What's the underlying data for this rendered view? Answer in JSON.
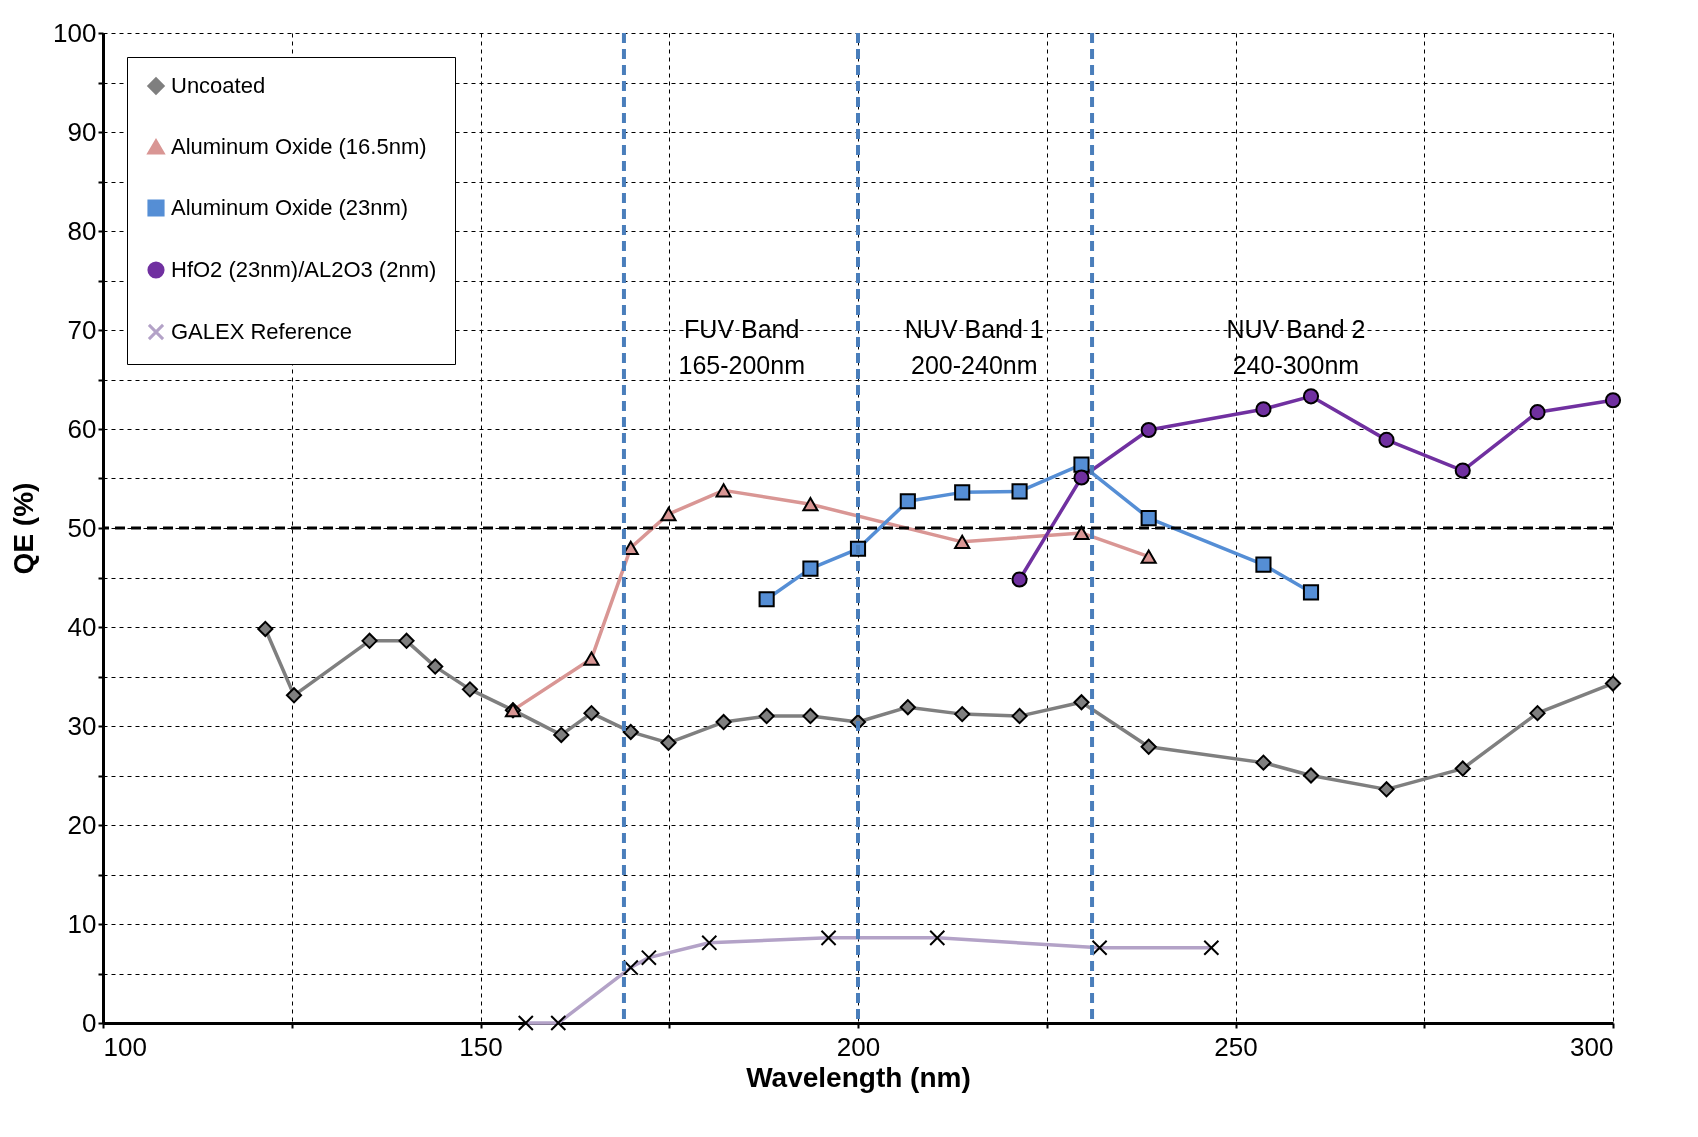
{
  "chart_data": {
    "type": "line",
    "xlabel": "Wavelength (nm)",
    "ylabel": "QE (%)",
    "xlim": [
      100,
      300
    ],
    "xticks": [
      100,
      {
        "value": 125,
        "label": null
      },
      150,
      {
        "value": 175,
        "label": null
      },
      200,
      {
        "value": 225,
        "label": null
      },
      250,
      {
        "value": 275,
        "label": null
      },
      300
    ],
    "ylim": [
      0,
      100
    ],
    "yticks": [
      0,
      {
        "value": 5,
        "label": null
      },
      10,
      {
        "value": 15,
        "label": null
      },
      20,
      {
        "value": 25,
        "label": null
      },
      30,
      {
        "value": 35,
        "label": null
      },
      40,
      {
        "value": 45,
        "label": null
      },
      50,
      {
        "value": 55,
        "label": null
      },
      60,
      {
        "value": 65,
        "label": null
      },
      70,
      {
        "value": 75,
        "label": null
      },
      80,
      {
        "value": 85,
        "label": null
      },
      90,
      {
        "value": 95,
        "label": null
      },
      100
    ],
    "grid": true,
    "legend": "top left",
    "line_style": "solid",
    "series": [
      {
        "name": "Uncoated",
        "color": "#7f7f7f",
        "marker": "diamond",
        "x": [
          121.5,
          125.3,
          135.3,
          140.2,
          144.0,
          148.6,
          154.3,
          160.7,
          164.7,
          169.9,
          174.9,
          182.2,
          187.9,
          193.7,
          200.0,
          206.6,
          213.8,
          221.4,
          229.6,
          238.5,
          253.7,
          260.0,
          270.0,
          280.1,
          290.0,
          300.0
        ],
        "values": [
          39.8,
          33.1,
          38.6,
          38.6,
          36.0,
          33.7,
          31.6,
          29.1,
          31.3,
          29.4,
          28.3,
          30.4,
          31.0,
          31.0,
          30.4,
          31.9,
          31.2,
          31.0,
          32.4,
          27.9,
          26.3,
          25.0,
          23.6,
          25.7,
          31.3,
          34.3
        ]
      },
      {
        "name": "Aluminum Oxide (16.5nm)",
        "color": "#d99694",
        "marker": "triangle",
        "x": [
          154.3,
          164.7,
          169.9,
          174.9,
          182.2,
          193.7,
          213.8,
          229.6,
          238.5
        ],
        "values": [
          31.6,
          36.8,
          48.0,
          51.4,
          53.8,
          52.4,
          48.6,
          49.5,
          47.1
        ]
      },
      {
        "name": "Aluminum Oxide (23nm)",
        "color": "#558ed5",
        "marker": "square",
        "x": [
          187.9,
          193.7,
          200.0,
          206.6,
          213.8,
          221.4,
          229.6,
          238.5,
          253.7,
          260.0
        ],
        "values": [
          42.8,
          45.9,
          47.9,
          52.7,
          53.6,
          53.7,
          56.4,
          51.0,
          46.3,
          43.5
        ]
      },
      {
        "name": "HfO2 (23nm)/AL2O3 (2nm)",
        "color": "#7030a0",
        "marker": "circle",
        "x": [
          221.4,
          229.6,
          238.5,
          253.7,
          260.0,
          270.0,
          280.1,
          290.0,
          300.0
        ],
        "values": [
          44.8,
          55.1,
          59.9,
          62.0,
          63.3,
          58.9,
          55.8,
          61.7,
          62.9
        ]
      },
      {
        "name": "GALEX Reference",
        "color": "#b3a2c7",
        "marker": "cross",
        "x": [
          156.0,
          160.3,
          169.9,
          172.3,
          180.3,
          196.1,
          210.5,
          232.0,
          246.8
        ],
        "values": [
          0,
          0,
          5.6,
          6.6,
          8.1,
          8.6,
          8.6,
          7.6,
          7.6
        ]
      }
    ],
    "ref_lines": [
      {
        "axis": "x",
        "value": 169,
        "color": "#4a7ebb",
        "line_style": "dashed"
      },
      {
        "axis": "x",
        "value": 200,
        "color": "#4a7ebb",
        "line_style": "dashed"
      },
      {
        "axis": "x",
        "value": 231,
        "color": "#4a7ebb",
        "line_style": "dashed"
      },
      {
        "axis": "y",
        "value": 50,
        "color": "#000000",
        "line_style": "dashed"
      }
    ],
    "annotations": [
      "FUV Band\n165-200nm",
      "NUV Band 1\n200-240nm",
      "NUV Band 2\n240-300nm"
    ]
  }
}
